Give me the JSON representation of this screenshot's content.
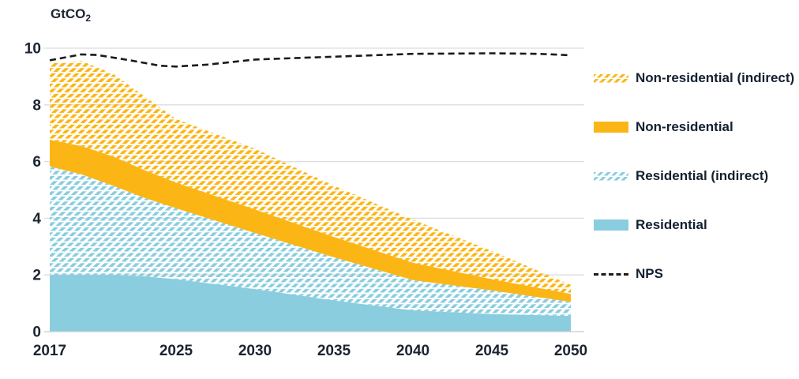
{
  "title": {
    "unit": "GtCO",
    "unit_sub": "2"
  },
  "colors": {
    "residential_blue": "#89CDDF",
    "non_residential_yellow": "#FBB616",
    "nps_line": "#1A1A1A",
    "gridline": "#DDDDDD",
    "axis_text": "#1B2430"
  },
  "chart_data": {
    "type": "area",
    "stacked": true,
    "unit_label": "GtCO2",
    "xlim": [
      2017,
      2050
    ],
    "ylim": [
      0,
      10
    ],
    "grid": true,
    "legend_position": "right",
    "y_ticks": [
      0,
      2,
      4,
      6,
      8,
      10
    ],
    "x_ticks": [
      2017,
      2025,
      2030,
      2035,
      2040,
      2045,
      2050
    ],
    "years": [
      2017,
      2019,
      2021,
      2023,
      2025,
      2030,
      2035,
      2040,
      2045,
      2050
    ],
    "series": [
      {
        "name": "Residential",
        "style": "solid",
        "color": "#89CDDF",
        "values": [
          2.0,
          2.0,
          2.0,
          1.95,
          1.85,
          1.5,
          1.1,
          0.75,
          0.62,
          0.55
        ]
      },
      {
        "name": "Residential (indirect)",
        "style": "hatched",
        "color": "#89CDDF",
        "values": [
          3.83,
          3.55,
          3.15,
          2.77,
          2.5,
          1.98,
          1.52,
          1.07,
          0.83,
          0.5
        ]
      },
      {
        "name": "Non-residential",
        "style": "solid",
        "color": "#FBB616",
        "values": [
          0.94,
          1.0,
          1.03,
          0.98,
          0.91,
          0.83,
          0.72,
          0.61,
          0.4,
          0.28
        ]
      },
      {
        "name": "Non-residential (indirect)",
        "style": "hatched",
        "color": "#FBB616",
        "values": [
          2.73,
          3.0,
          2.92,
          2.6,
          2.24,
          2.14,
          1.81,
          1.52,
          1.0,
          0.32
        ]
      }
    ],
    "line_series": {
      "name": "NPS",
      "style": "dashed",
      "color": "#1A1A1A",
      "x": [
        2017,
        2019,
        2020,
        2022,
        2024,
        2025,
        2027,
        2030,
        2033,
        2035,
        2040,
        2045,
        2048,
        2050
      ],
      "values": [
        9.57,
        9.78,
        9.76,
        9.58,
        9.38,
        9.35,
        9.42,
        9.6,
        9.66,
        9.7,
        9.8,
        9.82,
        9.8,
        9.75
      ]
    },
    "legend": [
      {
        "label": "Non-residential (indirect)",
        "swatch": "hatched",
        "color": "#FBB616"
      },
      {
        "label": "Non-residential",
        "swatch": "solid",
        "color": "#FBB616"
      },
      {
        "label": "Residential (indirect)",
        "swatch": "hatched",
        "color": "#89CDDF"
      },
      {
        "label": "Residential",
        "swatch": "solid",
        "color": "#89CDDF"
      },
      {
        "label": "NPS",
        "swatch": "dashed-line",
        "color": "#1A1A1A"
      }
    ]
  }
}
